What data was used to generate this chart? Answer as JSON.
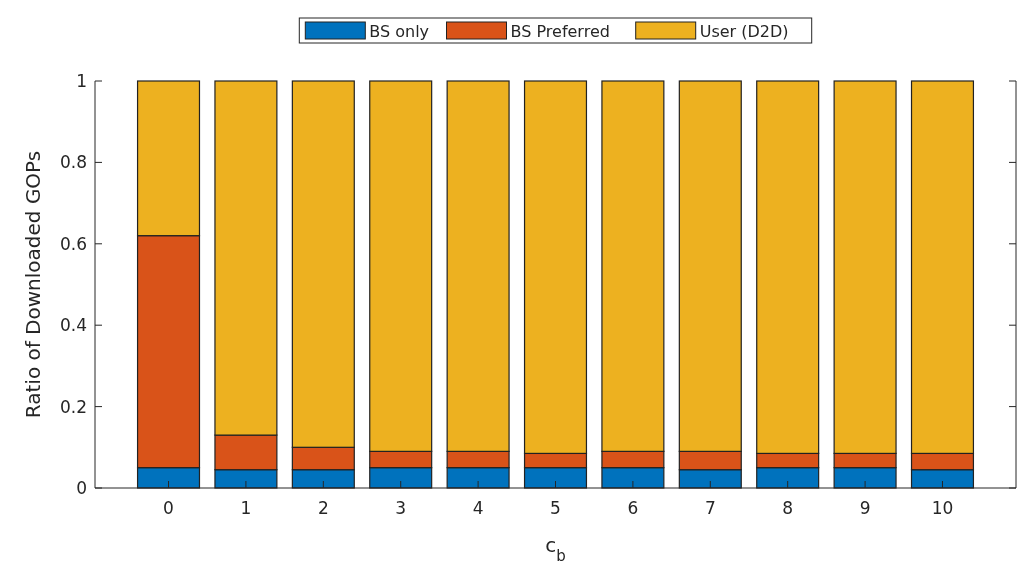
{
  "chart_data": {
    "type": "bar",
    "stacked": true,
    "xlabel": "c$_{b}$",
    "ylabel": "Ratio of Downloaded GOPs",
    "categories": [
      "0",
      "1",
      "2",
      "3",
      "4",
      "5",
      "6",
      "7",
      "8",
      "9",
      "10"
    ],
    "series": [
      {
        "name": "BS only",
        "color": "#0072bd",
        "values": [
          0.05,
          0.045,
          0.045,
          0.05,
          0.05,
          0.05,
          0.05,
          0.045,
          0.05,
          0.05,
          0.045
        ]
      },
      {
        "name": "BS Preferred",
        "color": "#d95319",
        "values": [
          0.57,
          0.085,
          0.055,
          0.04,
          0.04,
          0.035,
          0.04,
          0.045,
          0.035,
          0.035,
          0.04
        ]
      },
      {
        "name": "User (D2D)",
        "color": "#edb120",
        "values": [
          0.38,
          0.87,
          0.9,
          0.91,
          0.91,
          0.915,
          0.91,
          0.91,
          0.915,
          0.915,
          0.915
        ]
      }
    ],
    "ylim": [
      0,
      1
    ],
    "yticks": [
      0,
      0.2,
      0.4,
      0.6,
      0.8,
      1
    ],
    "legend": "top",
    "grid": false
  }
}
